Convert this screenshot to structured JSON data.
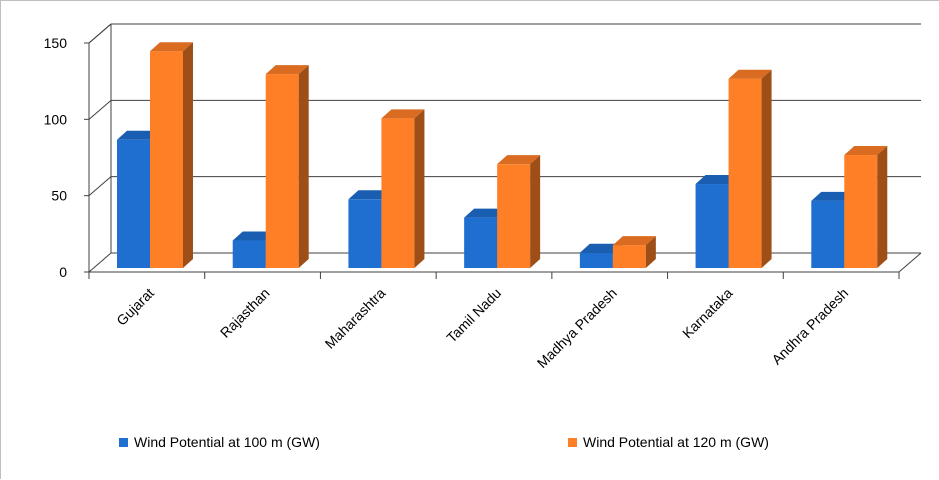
{
  "chart_data": {
    "type": "bar",
    "categories": [
      "Gujarat",
      "Rajasthan",
      "Maharashtra",
      "Tamil Nadu",
      "Madhya Pradesh",
      "Karnataka",
      "Andhra Pradesh"
    ],
    "series": [
      {
        "name": "Wind Potential at 100 m (GW)",
        "values": [
          84,
          18,
          45,
          33,
          10,
          55,
          44
        ],
        "color": "#1f6fd1"
      },
      {
        "name": "Wind Potential at 120 m (GW)",
        "values": [
          142,
          127,
          98,
          68,
          15,
          124,
          74
        ],
        "color": "#ff7f27"
      }
    ],
    "yticks": [
      "0",
      "50",
      "100",
      "150"
    ],
    "ylim": [
      0,
      150
    ],
    "grid": true,
    "legend_position": "bottom",
    "title": "",
    "xlabel": "",
    "ylabel": ""
  }
}
